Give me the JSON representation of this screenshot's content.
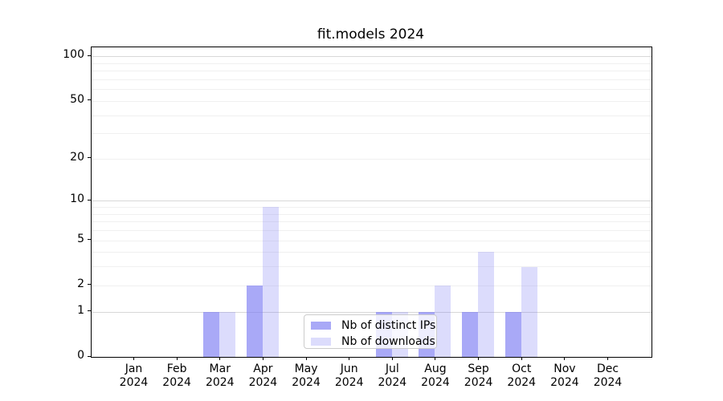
{
  "chart_data": {
    "type": "bar",
    "title": "fit.models 2024",
    "xlabel": "",
    "ylabel": "",
    "categories": [
      "Jan 2024",
      "Feb 2024",
      "Mar 2024",
      "Apr 2024",
      "May 2024",
      "Jun 2024",
      "Jul 2024",
      "Aug 2024",
      "Sep 2024",
      "Oct 2024",
      "Nov 2024",
      "Dec 2024"
    ],
    "series": [
      {
        "name": "Nb of distinct IPs",
        "color": "#7676f2",
        "alpha": 0.63,
        "values": [
          0,
          0,
          1,
          2,
          0,
          0,
          1,
          1,
          1,
          1,
          0,
          0
        ]
      },
      {
        "name": "Nb of downloads",
        "color": "#7676f2",
        "alpha": 0.26,
        "values": [
          0,
          0,
          1,
          9,
          0,
          0,
          1,
          2,
          4,
          3,
          0,
          0
        ]
      }
    ],
    "yscale": "log1p",
    "ylim": [
      0,
      115
    ],
    "yticks": [
      0,
      1,
      2,
      5,
      10,
      20,
      50,
      100
    ],
    "ytick_labels": [
      "0",
      "1",
      "2",
      "5",
      "10",
      "20",
      "50",
      "100"
    ],
    "grid": {
      "on": true,
      "major_values": [
        1,
        10,
        100
      ],
      "minor_values": [
        2,
        3,
        4,
        5,
        6,
        7,
        8,
        9,
        20,
        30,
        40,
        50,
        60,
        70,
        80,
        90
      ],
      "major_color": "#d8d8d8",
      "minor_color": "#f0f0f0"
    },
    "legend": {
      "position": "lower-center"
    }
  }
}
